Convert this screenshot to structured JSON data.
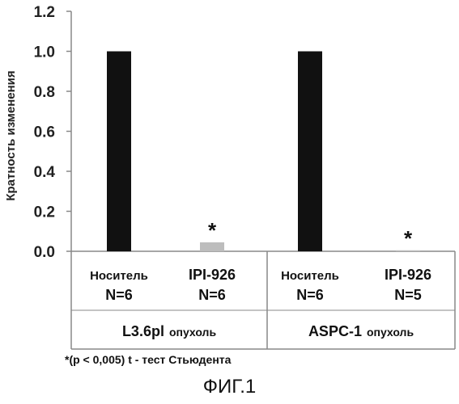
{
  "chart_data": {
    "type": "bar",
    "ylabel": "Кратность изменения",
    "ylim": [
      0,
      1.2
    ],
    "yticks": [
      "0.0",
      "0.2",
      "0.4",
      "0.6",
      "0.8",
      "1.0",
      "1.2"
    ],
    "grid": false,
    "categories": [
      {
        "name": "Носитель",
        "n": "N=6",
        "value": 1.0,
        "color": "#111111",
        "annotation": ""
      },
      {
        "name": "IPI-926",
        "n": "N=6",
        "value": 0.045,
        "color": "#bdbdbd",
        "annotation": "*"
      },
      {
        "name": "Носитель",
        "n": "N=6",
        "value": 1.0,
        "color": "#111111",
        "annotation": ""
      },
      {
        "name": "IPI-926",
        "n": "N=5",
        "value": 0.005,
        "color": "#bdbdbd",
        "annotation": "*"
      }
    ],
    "groups": [
      {
        "main": "L3.6pl",
        "sub": "опухоль"
      },
      {
        "main": "ASPC-1",
        "sub": "опухоль"
      }
    ]
  },
  "footnote": "*(p < 0,005) t - тест Стьюдента",
  "figure_label": "ФИГ.1"
}
